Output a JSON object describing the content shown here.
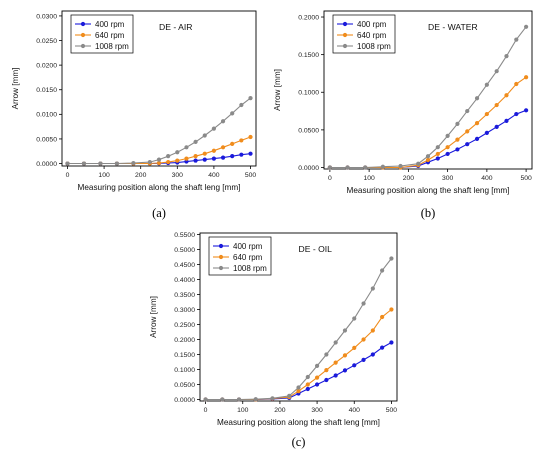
{
  "chart_data": [
    {
      "type": "line",
      "panel_label": "(a)",
      "title": "DE - AIR",
      "xlabel": "Measuring position along the shaft leng [mm]",
      "ylabel": "Arrow [mm]",
      "xlim": [
        -15,
        515
      ],
      "ylim": [
        -0.0005,
        0.031
      ],
      "xticks": [
        0,
        100,
        200,
        300,
        400,
        500
      ],
      "yticks": [
        0.0,
        0.005,
        0.01,
        0.015,
        0.02,
        0.025,
        0.03
      ],
      "ytick_labels": [
        "0.0000",
        "0.0050",
        "0.0100",
        "0.0150",
        "0.0200",
        "0.0250",
        "0.0300"
      ],
      "legend_position": "top-left",
      "x": [
        0,
        45,
        90,
        135,
        180,
        225,
        250,
        275,
        300,
        325,
        350,
        375,
        400,
        425,
        450,
        475,
        500
      ],
      "series": [
        {
          "name": "400 rpm",
          "color": "#1a1adb",
          "values": [
            0,
            0,
            0,
            0,
            0,
            0,
            5e-05,
            0.0001,
            0.0002,
            0.0004,
            0.0006,
            0.0008,
            0.001,
            0.0012,
            0.0015,
            0.0018,
            0.002
          ]
        },
        {
          "name": "640 rpm",
          "color": "#f08c1c",
          "values": [
            0,
            0,
            0,
            0,
            0,
            0,
            0.0001,
            0.0003,
            0.0006,
            0.001,
            0.0015,
            0.002,
            0.0026,
            0.0033,
            0.004,
            0.0047,
            0.0054
          ]
        },
        {
          "name": "1008 rpm",
          "color": "#8a8a8a",
          "values": [
            0,
            0,
            0,
            0,
            0.0001,
            0.0003,
            0.0008,
            0.0015,
            0.0023,
            0.0033,
            0.0044,
            0.0057,
            0.0071,
            0.0086,
            0.0102,
            0.0119,
            0.0133
          ]
        }
      ]
    },
    {
      "type": "line",
      "panel_label": "(b)",
      "title": "DE - WATER",
      "xlabel": "Measuring position along the shaft leng [mm]",
      "ylabel": "Arrow [mm]",
      "xlim": [
        -15,
        515
      ],
      "ylim": [
        -0.002,
        0.208
      ],
      "xticks": [
        0,
        100,
        200,
        300,
        400,
        500
      ],
      "yticks": [
        0.0,
        0.05,
        0.1,
        0.15,
        0.2
      ],
      "ytick_labels": [
        "0.0000",
        "0.0500",
        "0.1000",
        "0.1500",
        "0.2000"
      ],
      "legend_position": "top-left",
      "x": [
        0,
        45,
        90,
        135,
        180,
        225,
        250,
        275,
        300,
        325,
        350,
        375,
        400,
        425,
        450,
        475,
        500
      ],
      "series": [
        {
          "name": "400 rpm",
          "color": "#1a1adb",
          "values": [
            0,
            0,
            0,
            0,
            0,
            0.002,
            0.007,
            0.012,
            0.018,
            0.024,
            0.031,
            0.038,
            0.046,
            0.054,
            0.062,
            0.071,
            0.076
          ]
        },
        {
          "name": "640 rpm",
          "color": "#f08c1c",
          "values": [
            0,
            0,
            0,
            0,
            0,
            0.003,
            0.01,
            0.018,
            0.027,
            0.037,
            0.048,
            0.059,
            0.071,
            0.083,
            0.096,
            0.111,
            0.12
          ]
        },
        {
          "name": "1008 rpm",
          "color": "#8a8a8a",
          "values": [
            0,
            0,
            0,
            0.001,
            0.002,
            0.005,
            0.015,
            0.027,
            0.042,
            0.058,
            0.075,
            0.092,
            0.11,
            0.128,
            0.148,
            0.17,
            0.187
          ]
        }
      ]
    },
    {
      "type": "line",
      "panel_label": "(c)",
      "title": "DE - OIL",
      "xlabel": "Measuring position along the shaft leng [mm]",
      "ylabel": "Arrow [mm]",
      "xlim": [
        -15,
        515
      ],
      "ylim": [
        -0.005,
        0.555
      ],
      "xticks": [
        0,
        100,
        200,
        300,
        400,
        500
      ],
      "yticks": [
        0.0,
        0.05,
        0.1,
        0.15,
        0.2,
        0.25,
        0.3,
        0.35,
        0.4,
        0.45,
        0.5,
        0.55
      ],
      "ytick_labels": [
        "0.0000",
        "0.0500",
        "0.1000",
        "0.1500",
        "0.2000",
        "0.2500",
        "0.3000",
        "0.3500",
        "0.4000",
        "0.4500",
        "0.5000",
        "0.5500"
      ],
      "legend_position": "top-left",
      "x": [
        0,
        45,
        90,
        135,
        180,
        225,
        250,
        275,
        300,
        325,
        350,
        375,
        400,
        425,
        450,
        475,
        500
      ],
      "series": [
        {
          "name": "400 rpm",
          "color": "#1a1adb",
          "values": [
            0,
            0,
            0,
            0,
            0.002,
            0.005,
            0.02,
            0.035,
            0.05,
            0.065,
            0.08,
            0.097,
            0.114,
            0.132,
            0.15,
            0.173,
            0.19
          ]
        },
        {
          "name": "640 rpm",
          "color": "#f08c1c",
          "values": [
            0,
            0,
            0,
            0,
            0.003,
            0.008,
            0.028,
            0.05,
            0.073,
            0.098,
            0.123,
            0.147,
            0.172,
            0.2,
            0.23,
            0.275,
            0.3
          ]
        },
        {
          "name": "1008 rpm",
          "color": "#8a8a8a",
          "values": [
            0,
            0,
            0,
            0.001,
            0.004,
            0.012,
            0.04,
            0.075,
            0.112,
            0.15,
            0.19,
            0.23,
            0.27,
            0.32,
            0.37,
            0.43,
            0.47
          ]
        }
      ]
    }
  ]
}
